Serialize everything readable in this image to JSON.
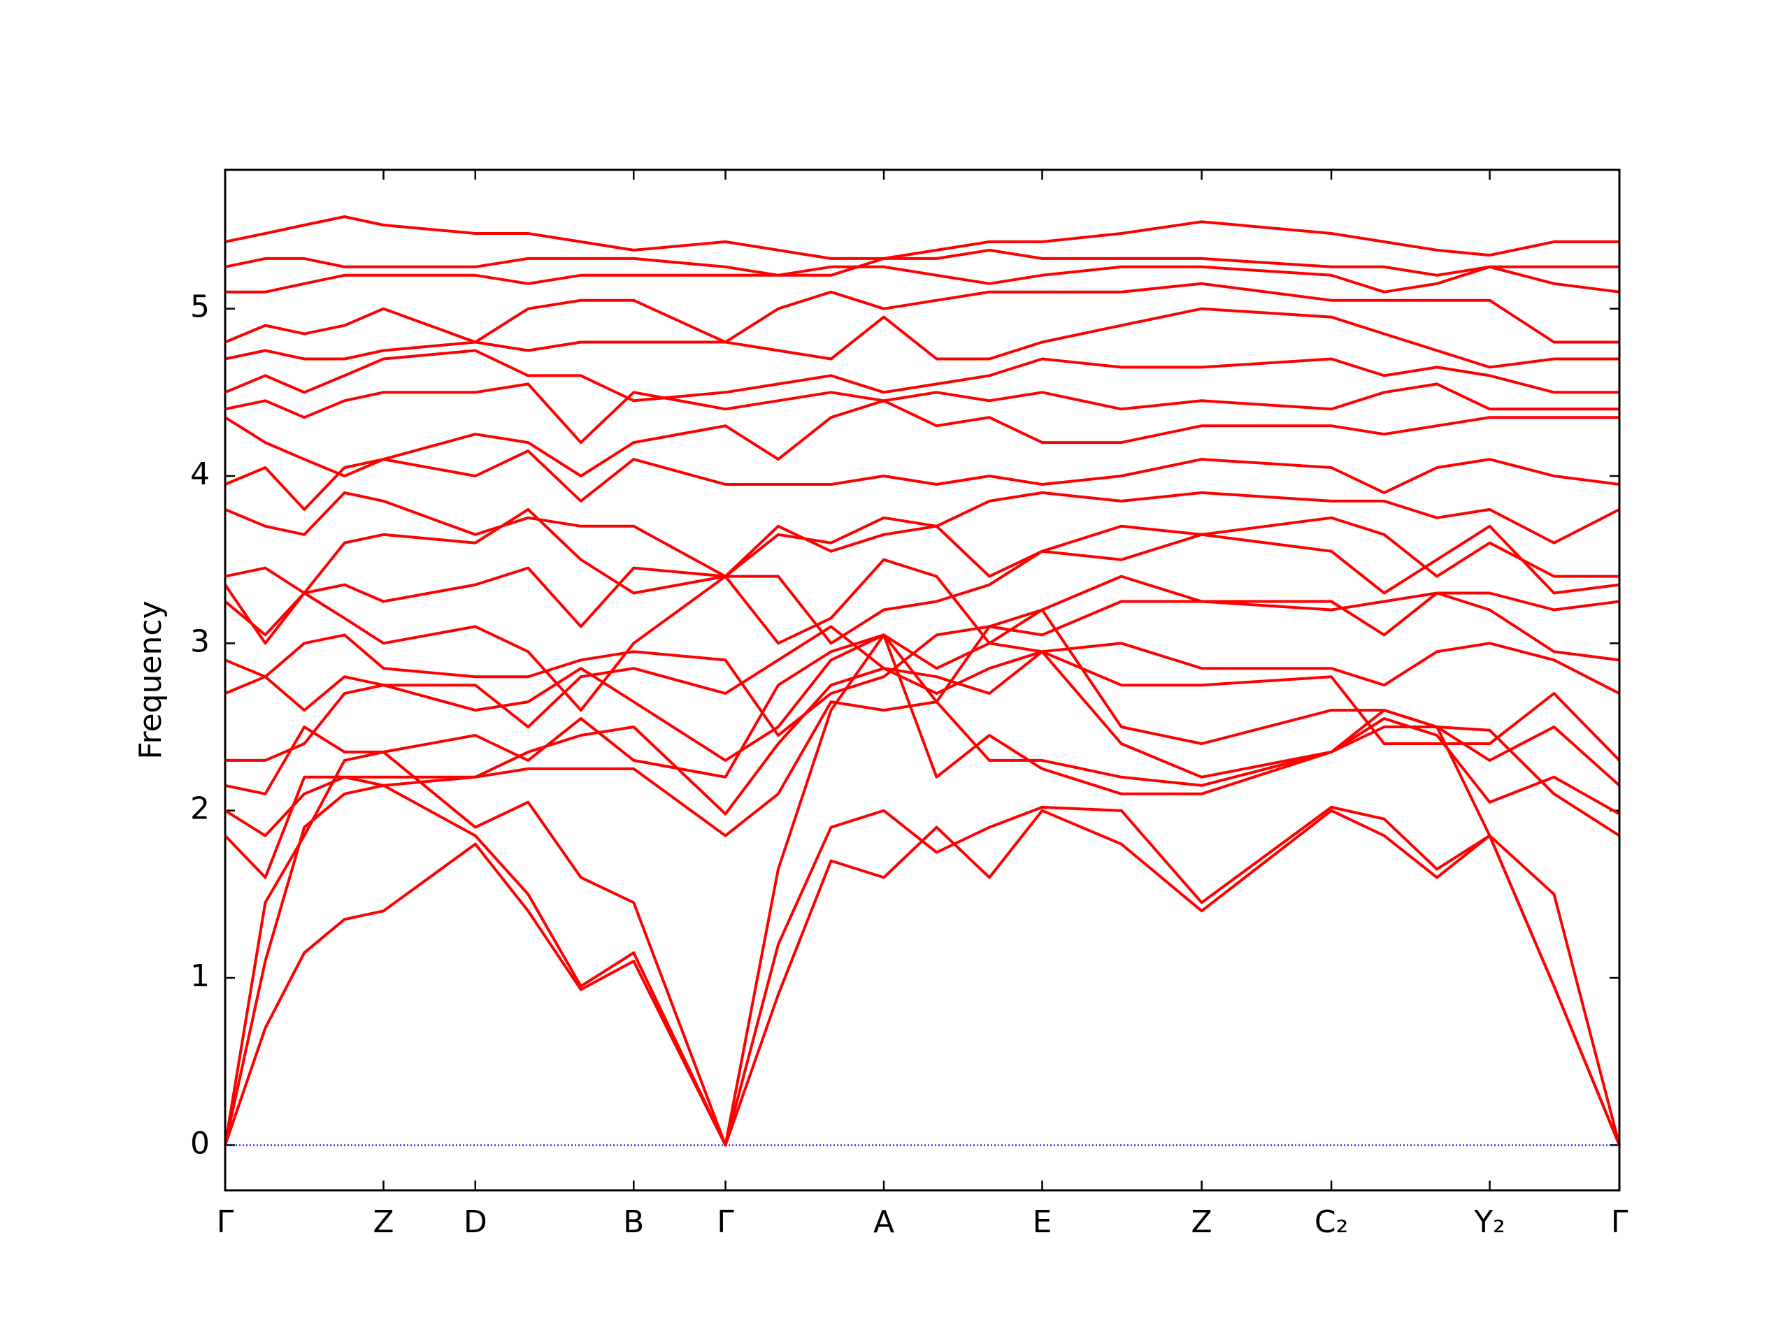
{
  "chart_data": {
    "type": "line",
    "y_label": "Frequency",
    "color": "#ff0000",
    "zero_line_color": "#0000ff",
    "x": [
      0,
      35,
      69,
      104,
      138,
      218,
      264,
      310,
      356,
      436,
      482,
      528,
      574,
      620,
      666,
      712,
      781,
      851,
      964,
      1010,
      1056,
      1102,
      1158,
      1215
    ],
    "xlim": [
      0,
      1215
    ],
    "xticks": [
      {
        "value": 0,
        "label": "Γ"
      },
      {
        "value": 138,
        "label": "Z"
      },
      {
        "value": 218,
        "label": "D"
      },
      {
        "value": 356,
        "label": "B"
      },
      {
        "value": 436,
        "label": "Γ"
      },
      {
        "value": 574,
        "label": "A"
      },
      {
        "value": 712,
        "label": "E"
      },
      {
        "value": 851,
        "label": "Z"
      },
      {
        "value": 964,
        "label": "C₂"
      },
      {
        "value": 1102,
        "label": "Y₂"
      },
      {
        "value": 1215,
        "label": "Γ"
      }
    ],
    "ylim": [
      -0.27,
      5.83
    ],
    "yticks": [
      0,
      1,
      2,
      3,
      4,
      5
    ],
    "series": [
      {
        "values": [
          0,
          0.7,
          1.15,
          1.35,
          1.4,
          1.8,
          1.4,
          0.93,
          1.1,
          0,
          0.9,
          1.7,
          1.6,
          1.9,
          1.6,
          2.0,
          1.8,
          1.4,
          2.0,
          1.85,
          1.6,
          1.85,
          0.95,
          0
        ]
      },
      {
        "values": [
          0,
          1.1,
          1.9,
          2.1,
          2.15,
          1.85,
          1.5,
          0.95,
          1.15,
          0,
          1.2,
          1.9,
          2.0,
          1.75,
          1.9,
          2.02,
          2.0,
          1.45,
          2.02,
          1.95,
          1.65,
          1.85,
          0.95,
          0
        ]
      },
      {
        "values": [
          0,
          1.45,
          1.85,
          2.3,
          2.35,
          1.9,
          2.05,
          1.6,
          1.45,
          0,
          1.65,
          2.6,
          3.05,
          2.2,
          2.45,
          2.25,
          2.1,
          2.1,
          2.35,
          2.5,
          2.5,
          1.85,
          1.5,
          0
        ]
      },
      {
        "values": [
          1.85,
          1.6,
          2.2,
          2.2,
          2.15,
          2.2,
          2.25,
          2.25,
          2.25,
          1.85,
          2.1,
          2.65,
          2.6,
          2.65,
          2.3,
          2.3,
          2.2,
          2.15,
          2.35,
          2.6,
          2.5,
          2.48,
          2.1,
          1.85
        ]
      },
      {
        "values": [
          2.0,
          1.85,
          2.1,
          2.2,
          2.2,
          2.2,
          2.35,
          2.45,
          2.5,
          1.98,
          2.4,
          2.75,
          2.85,
          2.7,
          2.85,
          2.95,
          2.4,
          2.2,
          2.35,
          2.55,
          2.45,
          2.05,
          2.2,
          1.98
        ]
      },
      {
        "values": [
          2.15,
          2.1,
          2.5,
          2.35,
          2.35,
          2.45,
          2.3,
          2.55,
          2.3,
          2.2,
          2.75,
          2.95,
          3.05,
          2.65,
          3.1,
          3.2,
          2.5,
          2.4,
          2.6,
          2.6,
          2.5,
          2.3,
          2.5,
          2.15
        ]
      },
      {
        "values": [
          2.3,
          2.3,
          2.4,
          2.7,
          2.75,
          2.6,
          2.65,
          2.85,
          2.65,
          2.3,
          2.5,
          2.9,
          3.05,
          2.85,
          3.0,
          2.95,
          2.75,
          2.75,
          2.8,
          2.4,
          2.4,
          2.4,
          2.7,
          2.3
        ]
      },
      {
        "values": [
          2.7,
          2.8,
          2.6,
          2.8,
          2.75,
          2.75,
          2.5,
          2.8,
          2.85,
          2.7,
          2.9,
          3.1,
          2.85,
          2.8,
          2.7,
          2.95,
          3.0,
          2.85,
          2.85,
          2.75,
          2.95,
          3.0,
          2.9,
          2.7
        ]
      },
      {
        "values": [
          2.9,
          2.8,
          3.0,
          3.05,
          2.85,
          2.8,
          2.8,
          2.9,
          2.95,
          2.9,
          2.45,
          2.7,
          2.8,
          3.05,
          3.1,
          3.05,
          3.25,
          3.25,
          3.2,
          3.25,
          3.3,
          3.2,
          2.95,
          2.9
        ]
      },
      {
        "values": [
          3.25,
          3.05,
          3.3,
          3.15,
          3.0,
          3.1,
          2.95,
          2.6,
          3.0,
          3.4,
          3.0,
          3.15,
          3.5,
          3.4,
          3.0,
          3.2,
          3.4,
          3.25,
          3.25,
          3.05,
          3.3,
          3.3,
          3.2,
          3.25
        ]
      },
      {
        "values": [
          3.35,
          3.0,
          3.3,
          3.35,
          3.25,
          3.35,
          3.45,
          3.1,
          3.45,
          3.4,
          3.4,
          3.0,
          3.2,
          3.25,
          3.35,
          3.55,
          3.5,
          3.65,
          3.55,
          3.3,
          3.5,
          3.7,
          3.3,
          3.35
        ]
      },
      {
        "values": [
          3.4,
          3.45,
          3.3,
          3.6,
          3.65,
          3.6,
          3.8,
          3.5,
          3.3,
          3.4,
          3.65,
          3.6,
          3.75,
          3.7,
          3.4,
          3.55,
          3.7,
          3.65,
          3.75,
          3.65,
          3.4,
          3.6,
          3.4,
          3.4
        ]
      },
      {
        "values": [
          3.8,
          3.7,
          3.65,
          3.9,
          3.85,
          3.65,
          3.75,
          3.7,
          3.7,
          3.4,
          3.7,
          3.55,
          3.65,
          3.7,
          3.85,
          3.9,
          3.85,
          3.9,
          3.85,
          3.85,
          3.75,
          3.8,
          3.6,
          3.8
        ]
      },
      {
        "values": [
          3.95,
          4.05,
          3.8,
          4.05,
          4.1,
          4.0,
          4.15,
          3.85,
          4.1,
          3.95,
          3.95,
          3.95,
          4.0,
          3.95,
          4.0,
          3.95,
          4.0,
          4.1,
          4.05,
          3.9,
          4.05,
          4.1,
          4.0,
          3.95
        ]
      },
      {
        "values": [
          4.35,
          4.2,
          4.1,
          4.0,
          4.1,
          4.25,
          4.2,
          4.0,
          4.2,
          4.3,
          4.1,
          4.35,
          4.45,
          4.3,
          4.35,
          4.2,
          4.2,
          4.3,
          4.3,
          4.25,
          4.3,
          4.35,
          4.35,
          4.35
        ]
      },
      {
        "values": [
          4.4,
          4.45,
          4.35,
          4.45,
          4.5,
          4.5,
          4.55,
          4.2,
          4.5,
          4.4,
          4.45,
          4.5,
          4.45,
          4.5,
          4.45,
          4.5,
          4.4,
          4.45,
          4.4,
          4.5,
          4.55,
          4.4,
          4.4,
          4.4
        ]
      },
      {
        "values": [
          4.5,
          4.6,
          4.5,
          4.6,
          4.7,
          4.75,
          4.6,
          4.6,
          4.45,
          4.5,
          4.55,
          4.6,
          4.5,
          4.55,
          4.6,
          4.7,
          4.65,
          4.65,
          4.7,
          4.6,
          4.65,
          4.6,
          4.5,
          4.5
        ]
      },
      {
        "values": [
          4.7,
          4.75,
          4.7,
          4.7,
          4.75,
          4.8,
          4.75,
          4.8,
          4.8,
          4.8,
          4.75,
          4.7,
          4.95,
          4.7,
          4.7,
          4.8,
          4.9,
          5.0,
          4.95,
          4.85,
          4.75,
          4.65,
          4.7,
          4.7
        ]
      },
      {
        "values": [
          4.8,
          4.9,
          4.85,
          4.9,
          5.0,
          4.8,
          5.0,
          5.05,
          5.05,
          4.8,
          5.0,
          5.1,
          5.0,
          5.05,
          5.1,
          5.1,
          5.1,
          5.15,
          5.05,
          5.05,
          5.05,
          5.05,
          4.8,
          4.8
        ]
      },
      {
        "values": [
          5.1,
          5.1,
          5.15,
          5.2,
          5.2,
          5.2,
          5.15,
          5.2,
          5.2,
          5.2,
          5.2,
          5.25,
          5.25,
          5.2,
          5.15,
          5.2,
          5.25,
          5.25,
          5.2,
          5.1,
          5.15,
          5.25,
          5.15,
          5.1
        ]
      },
      {
        "values": [
          5.25,
          5.3,
          5.3,
          5.25,
          5.25,
          5.25,
          5.3,
          5.3,
          5.3,
          5.25,
          5.2,
          5.2,
          5.3,
          5.3,
          5.35,
          5.3,
          5.3,
          5.3,
          5.25,
          5.25,
          5.2,
          5.25,
          5.25,
          5.25
        ]
      },
      {
        "values": [
          5.4,
          5.45,
          5.5,
          5.55,
          5.5,
          5.45,
          5.45,
          5.4,
          5.35,
          5.4,
          5.35,
          5.3,
          5.3,
          5.35,
          5.4,
          5.4,
          5.45,
          5.52,
          5.45,
          5.4,
          5.35,
          5.32,
          5.4,
          5.4
        ]
      }
    ]
  }
}
